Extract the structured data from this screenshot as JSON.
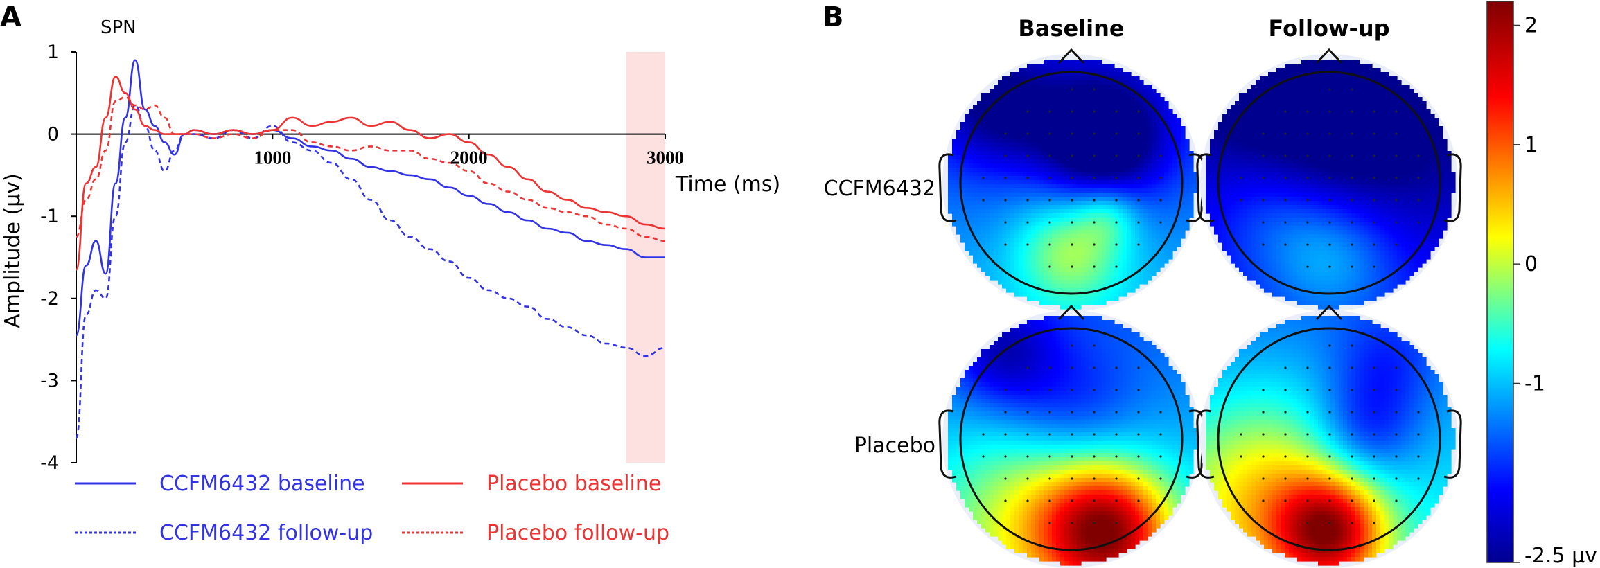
{
  "panel_a": {
    "letter": "A",
    "plot_label": "SPN",
    "x_axis_label": "Time (ms)",
    "y_axis_label": "Amplitude (µv)",
    "x_ticks": [
      1000,
      2000,
      3000
    ],
    "y_ticks": [
      1,
      0,
      -1,
      -2,
      -3,
      -4
    ],
    "highlight_window_ms": [
      2800,
      3000
    ],
    "highlight_color": "#fde0e0"
  },
  "panel_b": {
    "letter": "B",
    "col_labels": [
      "Baseline",
      "Follow-up"
    ],
    "row_labels": [
      "CCFM6432",
      "Placebo"
    ],
    "colorbar": {
      "tick_labels": [
        "2",
        "1",
        "0",
        "-1",
        "-2.5 µv"
      ],
      "tick_values": [
        2,
        1,
        0,
        -1,
        -2.5
      ],
      "min": -2.5,
      "max": 2.2,
      "colormap": "jet"
    }
  },
  "legend": [
    {
      "label": "CCFM6432 baseline",
      "color": "#3333e6",
      "dash": "solid"
    },
    {
      "label": "Placebo baseline",
      "color": "#ee3333",
      "dash": "solid"
    },
    {
      "label": "CCFM6432 follow-up",
      "color": "#3333e6",
      "dash": "dotted"
    },
    {
      "label": "Placebo follow-up",
      "color": "#ee3333",
      "dash": "dotted"
    }
  ],
  "chart_data": {
    "type": "line",
    "ylim": [
      -4,
      1
    ],
    "xlim": [
      0,
      3000
    ],
    "grid": false,
    "legend_position": "bottom",
    "series": [
      {
        "name": "CCFM6432 baseline",
        "color": "#3333e6",
        "dash": "solid",
        "x": [
          0,
          50,
          100,
          150,
          200,
          250,
          300,
          350,
          400,
          450,
          500,
          550,
          600,
          700,
          800,
          900,
          1000,
          1100,
          1200,
          1300,
          1400,
          1500,
          1600,
          1700,
          1800,
          1900,
          2000,
          2100,
          2200,
          2300,
          2400,
          2500,
          2600,
          2700,
          2800,
          2900,
          3000
        ],
        "y": [
          -2.45,
          -1.6,
          -1.3,
          -1.7,
          -0.6,
          0.2,
          0.9,
          0.3,
          0.1,
          -0.1,
          -0.25,
          0.0,
          0.05,
          0.0,
          0.05,
          0.0,
          0.05,
          -0.05,
          -0.15,
          -0.2,
          -0.3,
          -0.4,
          -0.45,
          -0.5,
          -0.55,
          -0.65,
          -0.75,
          -0.85,
          -0.95,
          -1.05,
          -1.15,
          -1.2,
          -1.3,
          -1.35,
          -1.4,
          -1.5,
          -1.5
        ]
      },
      {
        "name": "CCFM6432 follow-up",
        "color": "#3333e6",
        "dash": "dotted",
        "x": [
          0,
          50,
          100,
          150,
          200,
          250,
          300,
          350,
          400,
          450,
          500,
          550,
          600,
          700,
          800,
          900,
          1000,
          1100,
          1200,
          1300,
          1400,
          1500,
          1600,
          1700,
          1800,
          1900,
          2000,
          2100,
          2200,
          2300,
          2400,
          2500,
          2600,
          2700,
          2800,
          2900,
          3000
        ],
        "y": [
          -3.7,
          -2.2,
          -1.9,
          -2.0,
          -1.0,
          -0.1,
          0.35,
          0.1,
          -0.2,
          -0.45,
          -0.2,
          0.0,
          0.0,
          -0.05,
          0.05,
          -0.05,
          0.1,
          -0.1,
          -0.2,
          -0.35,
          -0.55,
          -0.8,
          -1.05,
          -1.25,
          -1.4,
          -1.55,
          -1.75,
          -1.9,
          -2.0,
          -2.1,
          -2.25,
          -2.35,
          -2.45,
          -2.55,
          -2.6,
          -2.7,
          -2.6
        ]
      },
      {
        "name": "Placebo baseline",
        "color": "#ee3333",
        "dash": "solid",
        "x": [
          0,
          50,
          100,
          150,
          200,
          250,
          300,
          350,
          400,
          450,
          500,
          550,
          600,
          700,
          800,
          900,
          1000,
          1100,
          1200,
          1300,
          1400,
          1500,
          1600,
          1700,
          1800,
          1900,
          2000,
          2100,
          2200,
          2300,
          2400,
          2500,
          2600,
          2700,
          2800,
          2900,
          3000
        ],
        "y": [
          -1.65,
          -0.6,
          -0.4,
          0.2,
          0.7,
          0.5,
          0.3,
          0.1,
          0.05,
          0.0,
          0.0,
          0.0,
          0.05,
          0.0,
          0.05,
          0.0,
          0.05,
          0.2,
          0.1,
          0.15,
          0.2,
          0.1,
          0.15,
          0.05,
          -0.05,
          0.0,
          -0.1,
          -0.25,
          -0.4,
          -0.55,
          -0.7,
          -0.8,
          -0.9,
          -0.95,
          -1.0,
          -1.1,
          -1.15
        ]
      },
      {
        "name": "Placebo follow-up",
        "color": "#ee3333",
        "dash": "dotted",
        "x": [
          0,
          50,
          100,
          150,
          200,
          250,
          300,
          350,
          400,
          450,
          500,
          550,
          600,
          700,
          800,
          900,
          1000,
          1100,
          1200,
          1300,
          1400,
          1500,
          1600,
          1700,
          1800,
          1900,
          2000,
          2100,
          2200,
          2300,
          2400,
          2500,
          2600,
          2700,
          2800,
          2900,
          3000
        ],
        "y": [
          -1.25,
          -0.8,
          -0.55,
          -0.2,
          0.4,
          0.45,
          0.35,
          0.3,
          0.35,
          0.2,
          0.0,
          0.0,
          0.0,
          -0.05,
          0.0,
          -0.05,
          0.05,
          0.05,
          -0.1,
          -0.15,
          -0.2,
          -0.15,
          -0.2,
          -0.2,
          -0.3,
          -0.35,
          -0.45,
          -0.6,
          -0.7,
          -0.8,
          -0.9,
          -0.95,
          -1.0,
          -1.1,
          -1.15,
          -1.25,
          -1.3
        ]
      }
    ]
  }
}
